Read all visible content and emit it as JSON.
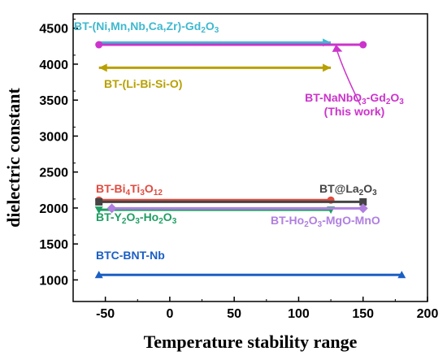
{
  "chart_data": {
    "type": "line",
    "title": "",
    "xlabel": "Temperature stability range",
    "ylabel": "dielectric constant",
    "xlim": [
      -75,
      200
    ],
    "ylim": [
      700,
      4700
    ],
    "xticks": [
      -50,
      0,
      50,
      100,
      150,
      200
    ],
    "yticks": [
      1000,
      1500,
      2000,
      2500,
      3000,
      3500,
      4000,
      4500
    ],
    "grid": false,
    "series": [
      {
        "label_parts": [
          [
            "BT-(Ni,Mn,Nb,Ca,Zr)-Gd",
            ""
          ],
          [
            "2",
            "sub"
          ],
          [
            "O",
            ""
          ],
          [
            "3",
            "sub"
          ]
        ],
        "x": [
          -55,
          125
        ],
        "y": [
          4300,
          4300
        ],
        "color": "#3fb8cf",
        "marker": "arrow-right",
        "end_marker": "arrow"
      },
      {
        "label_parts": [
          [
            "BT-NaNbO",
            ""
          ],
          [
            "3",
            "sub"
          ],
          [
            "-Gd",
            ""
          ],
          [
            "2",
            "sub"
          ],
          [
            "O",
            ""
          ],
          [
            "3",
            "sub"
          ]
        ],
        "label_line2": "(This work)",
        "x": [
          -55,
          150
        ],
        "y": [
          4270,
          4270
        ],
        "color": "#cc33cc",
        "marker": "circle"
      },
      {
        "label_parts": [
          [
            "BT-(Li-Bi-Si-O)",
            ""
          ]
        ],
        "x": [
          -55,
          125
        ],
        "y": [
          3950,
          3950
        ],
        "color": "#b8a000",
        "marker": "arrow-both"
      },
      {
        "label_parts": [
          [
            "BT-Bi",
            ""
          ],
          [
            "4",
            "sub"
          ],
          [
            "Ti",
            ""
          ],
          [
            "3",
            "sub"
          ],
          [
            "O",
            ""
          ],
          [
            "12",
            "sub"
          ]
        ],
        "x": [
          -55,
          125
        ],
        "y": [
          2110,
          2110
        ],
        "color": "#e04b3f",
        "marker": "circle"
      },
      {
        "label_parts": [
          [
            "BT@La",
            ""
          ],
          [
            "2",
            "sub"
          ],
          [
            "O",
            ""
          ],
          [
            "3",
            "sub"
          ]
        ],
        "x": [
          -55,
          150
        ],
        "y": [
          2085,
          2085
        ],
        "color": "#444444",
        "marker": "square"
      },
      {
        "label_parts": [
          [
            "BT-Y",
            ""
          ],
          [
            "2",
            "sub"
          ],
          [
            "O",
            ""
          ],
          [
            "3",
            "sub"
          ],
          [
            "-Ho",
            ""
          ],
          [
            "2",
            "sub"
          ],
          [
            "O",
            ""
          ],
          [
            "3",
            "sub"
          ]
        ],
        "x": [
          -55,
          125
        ],
        "y": [
          1975,
          1975
        ],
        "color": "#1f9e63",
        "marker": "triangle-down"
      },
      {
        "label_parts": [
          [
            "BT-Ho",
            ""
          ],
          [
            "2",
            "sub"
          ],
          [
            "O",
            ""
          ],
          [
            "3",
            "sub"
          ],
          [
            "-MgO-MnO",
            ""
          ]
        ],
        "x": [
          -45,
          150
        ],
        "y": [
          1995,
          1995
        ],
        "color": "#b07fe0",
        "marker": "diamond"
      },
      {
        "label_parts": [
          [
            "BTC-BNT-Nb",
            ""
          ]
        ],
        "x": [
          -55,
          180
        ],
        "y": [
          1070,
          1070
        ],
        "color": "#1a5fc4",
        "marker": "triangle-up"
      }
    ]
  }
}
